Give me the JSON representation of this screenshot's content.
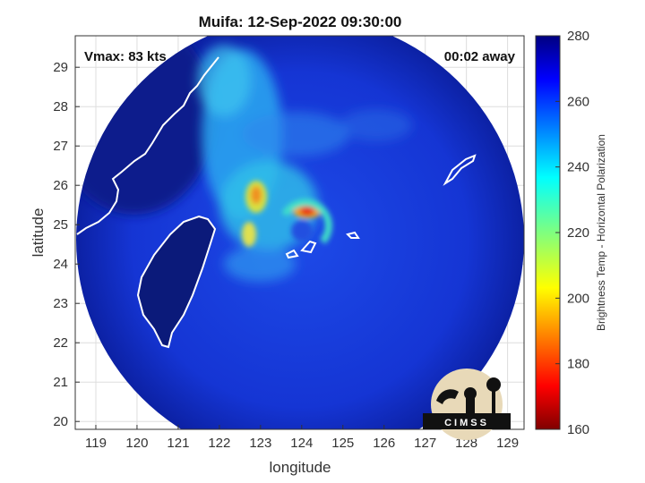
{
  "chart_data": {
    "type": "heatmap",
    "title": "Muifa: 12-Sep-2022 09:30:00",
    "xlabel": "longitude",
    "ylabel": "latitude",
    "xlim": [
      118.5,
      129.4
    ],
    "ylim": [
      19.8,
      29.8
    ],
    "xticks": [
      119,
      120,
      121,
      122,
      123,
      124,
      125,
      126,
      127,
      128,
      129
    ],
    "yticks": [
      20,
      21,
      22,
      23,
      24,
      25,
      26,
      27,
      28,
      29
    ],
    "grid": true,
    "annotations": {
      "vmax": "Vmax: 83 kts",
      "time_offset": "00:02 away"
    },
    "storm_center": {
      "lon": 124.1,
      "lat": 25.0
    },
    "colorbar": {
      "label": "Brightness Temp - Horizontal Polarization",
      "range": [
        160,
        280
      ],
      "ticks": [
        160,
        180,
        200,
        220,
        240,
        260,
        280
      ],
      "colormap": "jet"
    }
  },
  "logo": {
    "text": "CIMSS"
  },
  "colors": {
    "background_scan": "#1434d6",
    "outer_scan": "#0a1f9a",
    "land": "#0b1a7a",
    "coastline": "#ffffff"
  }
}
